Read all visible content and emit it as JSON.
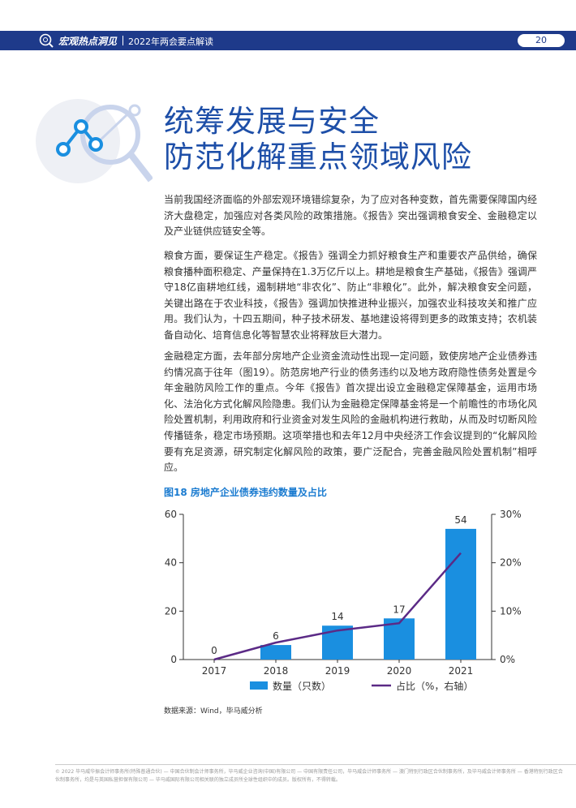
{
  "header": {
    "brand": "宏观热点洞见",
    "subtitle": "2022年两会要点解读",
    "page_number": "20"
  },
  "colors": {
    "header_bg": "#1e3a8a",
    "title": "#1e4fa8",
    "bar": "#1a8fe0",
    "line": "#5b2a86",
    "caption": "#1a7bd0"
  },
  "title": {
    "line1": "统筹发展与安全",
    "line2": "防范化解重点领域风险"
  },
  "paragraphs": [
    "当前我国经济面临的外部宏观环境错综复杂，为了应对各种变数，首先需要保障国内经济大盘稳定，加强应对各类风险的政策措施。《报告》突出强调粮食安全、金融稳定以及产业链供应链安全等。",
    "粮食方面，要保证生产稳定。《报告》强调全力抓好粮食生产和重要农产品供给，确保粮食播种面积稳定、产量保持在1.3万亿斤以上。耕地是粮食生产基础，《报告》强调严守18亿亩耕地红线，遏制耕地“非农化”、防止“非粮化”。此外，解决粮食安全问题，关键出路在于农业科技，《报告》强调加快推进种业振兴，加强农业科技攻关和推广应用。我们认为，十四五期间，种子技术研发、基地建设将得到更多的政策支持；农机装备自动化、培育信息化等智慧农业将释放巨大潜力。",
    "金融稳定方面，去年部分房地产企业资金流动性出现一定问题，致使房地产企业债券违约情况高于往年（图19）。防范房地产行业的债务违约以及地方政府隐性债务处置是今年金融防风险工作的重点。今年《报告》首次提出设立金融稳定保障基金，运用市场化、法治化方式化解风险隐患。我们认为金融稳定保障基金将是一个前瞻性的市场化风险处置机制，利用政府和行业资金对发生风险的金融机构进行救助，从而及时切断风险传播链条，稳定市场预期。这项举措也和去年12月中央经济工作会议提到的“化解风险要有充足资源，研究制定化解风险的政策，要广泛配合，完善金融风险处置机制”相呼应。"
  ],
  "figure": {
    "caption": "图18  房地产企业债券违约数量及占比",
    "source": "数据来源：Wind，毕马威分析"
  },
  "chart_data": {
    "type": "bar",
    "categories": [
      "2017",
      "2018",
      "2019",
      "2020",
      "2021"
    ],
    "series": [
      {
        "name": "数量（只数）",
        "type": "bar",
        "axis": "left",
        "values": [
          0,
          6,
          14,
          17,
          54
        ]
      },
      {
        "name": "占比（%，右轴）",
        "type": "line",
        "axis": "right",
        "values": [
          0,
          3.5,
          6,
          7.5,
          22
        ]
      }
    ],
    "data_labels": [
      "0",
      "6",
      "14",
      "17",
      "54"
    ],
    "y_left": {
      "ylim": [
        0,
        60
      ],
      "ticks": [
        "0",
        "20",
        "40",
        "60"
      ]
    },
    "y_right": {
      "ylim": [
        0,
        30
      ],
      "ticks": [
        "0%",
        "10%",
        "20%",
        "30%"
      ]
    },
    "grid": false,
    "legend_position": "bottom"
  },
  "footer": "© 2022 毕马威华振会计师事务所(特殊普通合伙) — 中国合伙制会计师事务所，毕马威企业咨询(中国)有限公司 — 中国有限责任公司，毕马威会计师事务所 — 澳门特别行政区合伙制事务所，及毕马威会计师事务所 — 香港特别行政区合伙制事务所，均是与英国私营担保有限公司 — 毕马威国际有限公司相关联的独立成员所全球性组织中的成员。版权所有，不得转载。"
}
